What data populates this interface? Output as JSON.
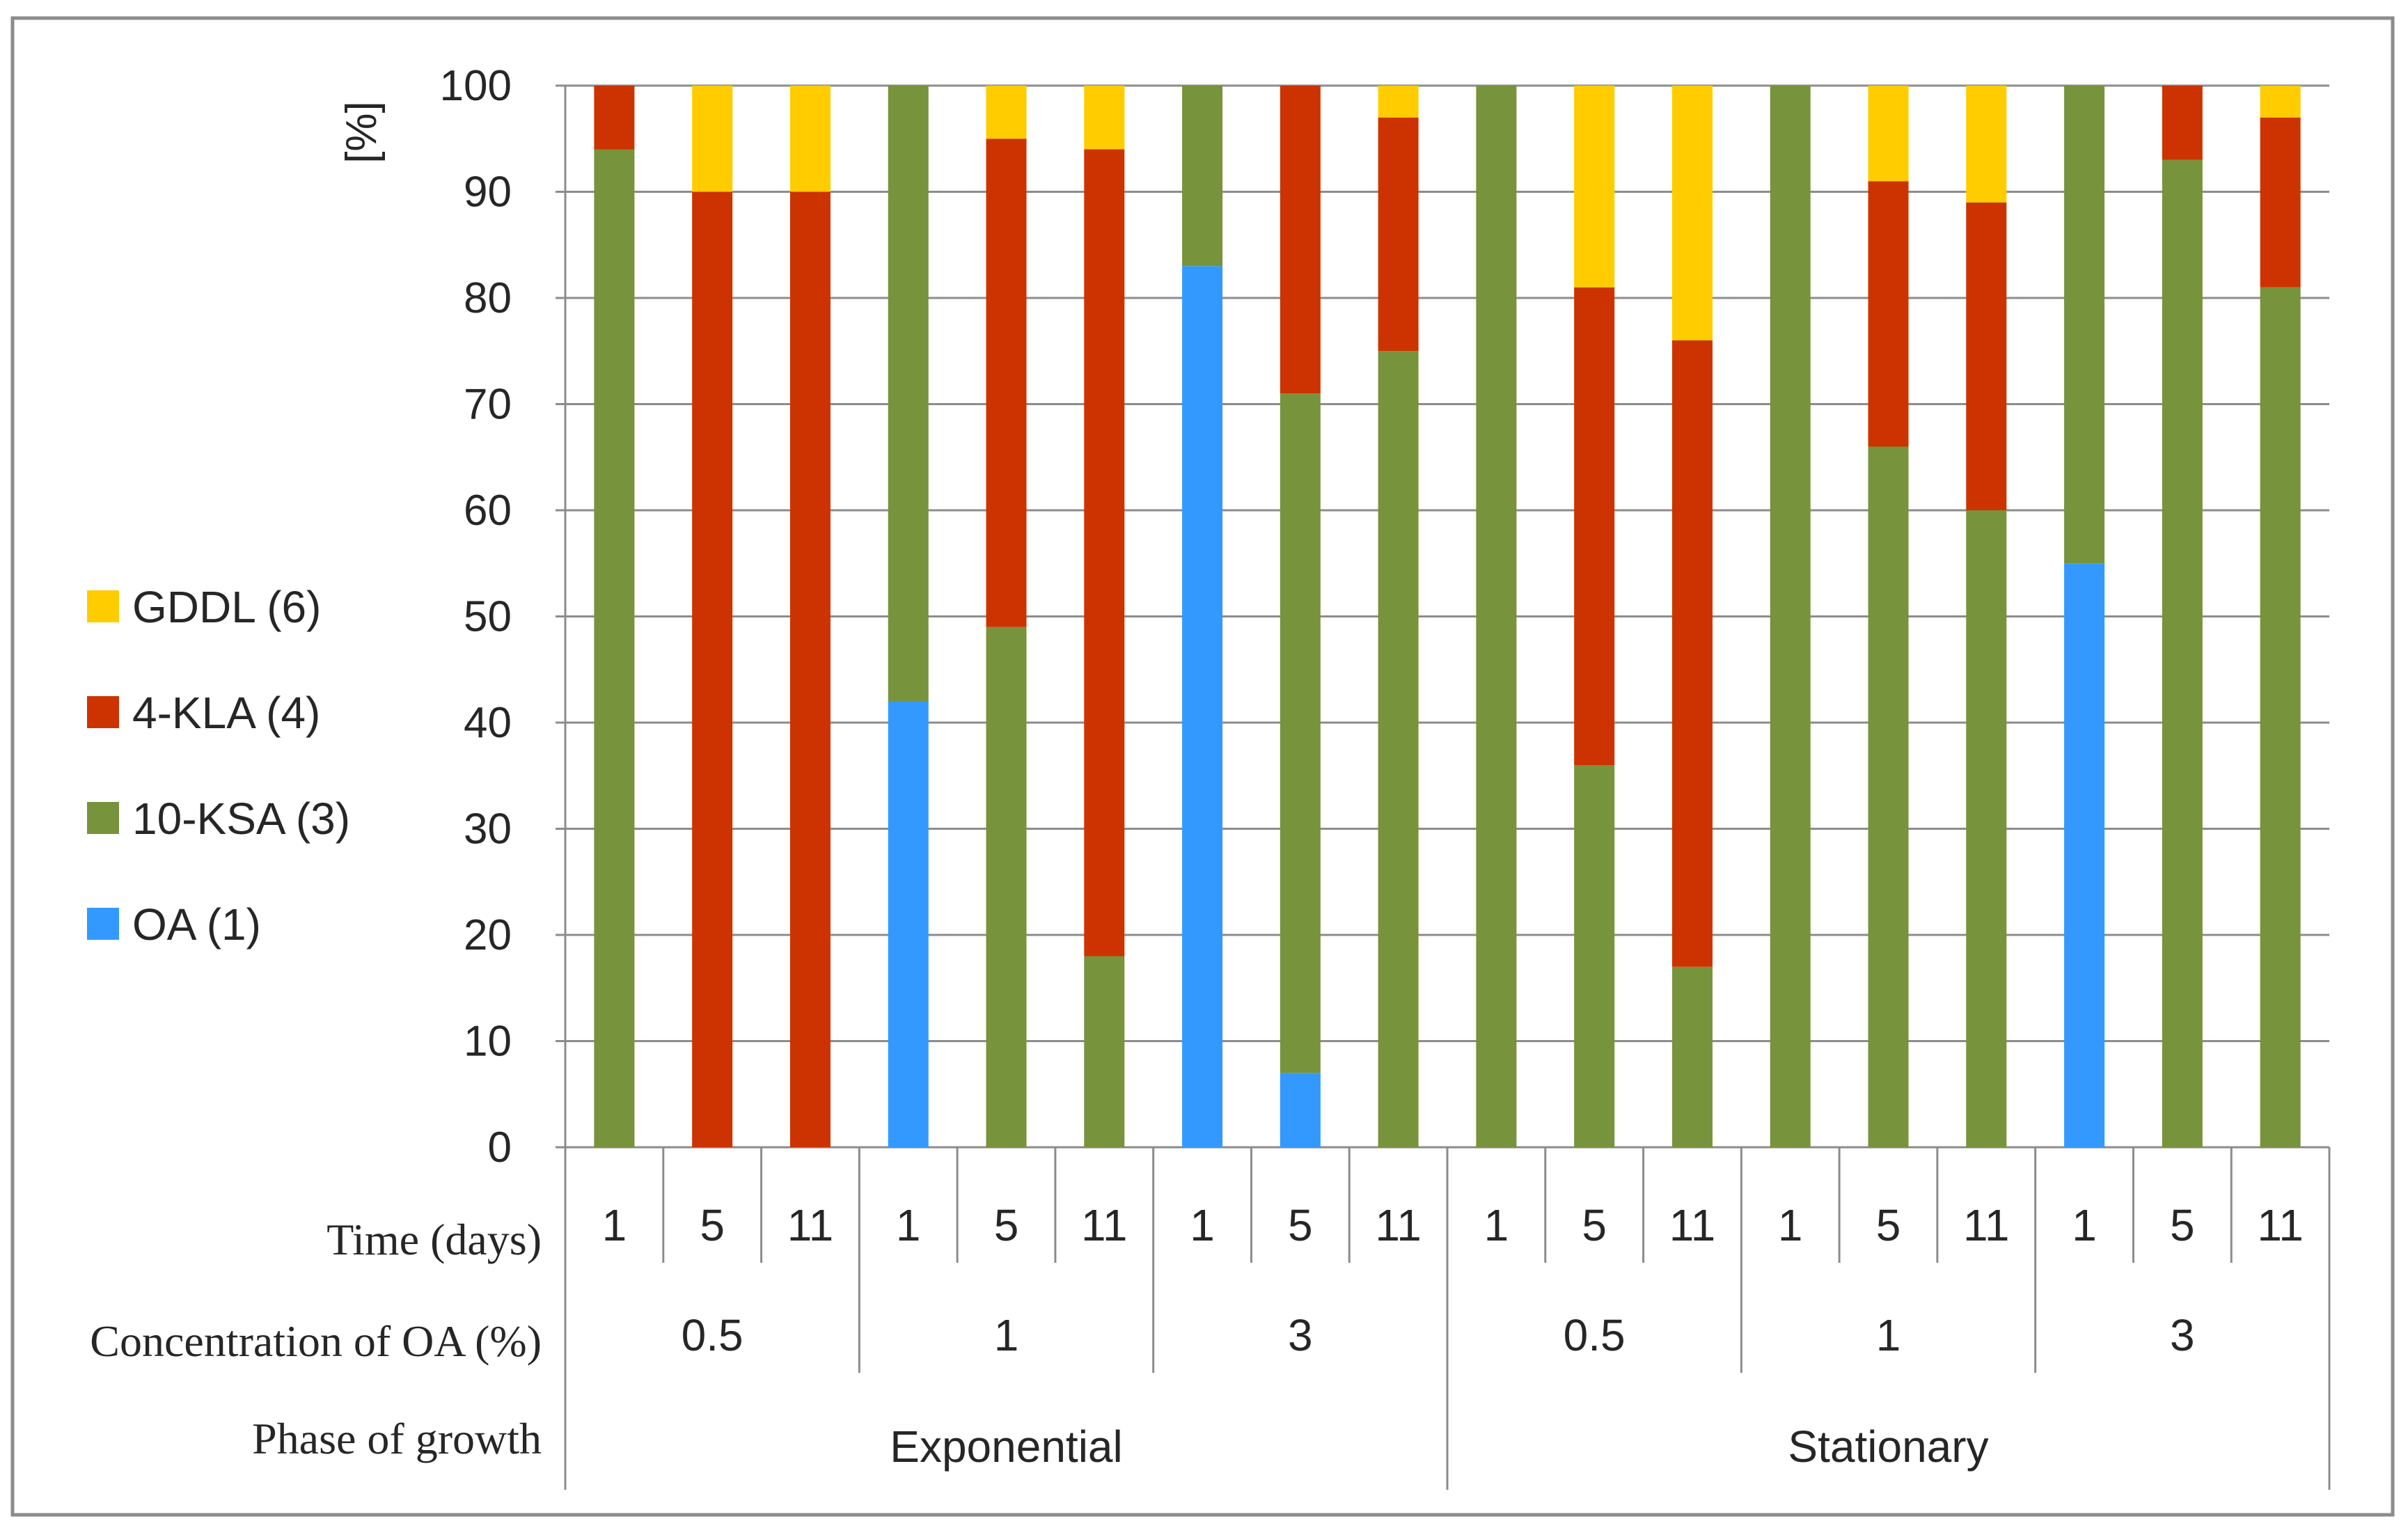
{
  "chart_data": {
    "type": "bar",
    "stacked": true,
    "ylabel": "[%]",
    "ylim": [
      0,
      100
    ],
    "yticks": [
      0,
      10,
      20,
      30,
      40,
      50,
      60,
      70,
      80,
      90,
      100
    ],
    "grid": true,
    "legend_position": "left",
    "series": [
      {
        "name": "OA (1)",
        "color": "#3399ff",
        "values": [
          0,
          0,
          0,
          42,
          0,
          0,
          83,
          7,
          0,
          0,
          0,
          0,
          0,
          0,
          0,
          55,
          0,
          0
        ]
      },
      {
        "name": "10-KSA (3)",
        "color": "#77933c",
        "values": [
          94,
          0,
          0,
          58,
          49,
          18,
          17,
          64,
          75,
          100,
          36,
          17,
          100,
          66,
          60,
          45,
          93,
          81
        ]
      },
      {
        "name": "4-KLA (4)",
        "color": "#cc3300",
        "values": [
          6,
          90,
          90,
          0,
          46,
          76,
          0,
          29,
          22,
          0,
          45,
          59,
          0,
          25,
          29,
          0,
          7,
          16
        ]
      },
      {
        "name": "GDDL (6)",
        "color": "#ffcc00",
        "values": [
          0,
          10,
          10,
          0,
          5,
          6,
          0,
          0,
          3,
          0,
          19,
          24,
          0,
          9,
          11,
          0,
          0,
          3
        ]
      }
    ],
    "row_labels": {
      "time": "Time (days)",
      "concentration": "Concentration of OA (%)",
      "phase": "Phase of growth"
    },
    "time_days": [
      "1",
      "5",
      "11",
      "1",
      "5",
      "11",
      "1",
      "5",
      "11",
      "1",
      "5",
      "11",
      "1",
      "5",
      "11",
      "1",
      "5",
      "11"
    ],
    "concentrations": [
      "0.5",
      "1",
      "3",
      "0.5",
      "1",
      "3"
    ],
    "phases": [
      "Exponential",
      "Stationary"
    ]
  }
}
